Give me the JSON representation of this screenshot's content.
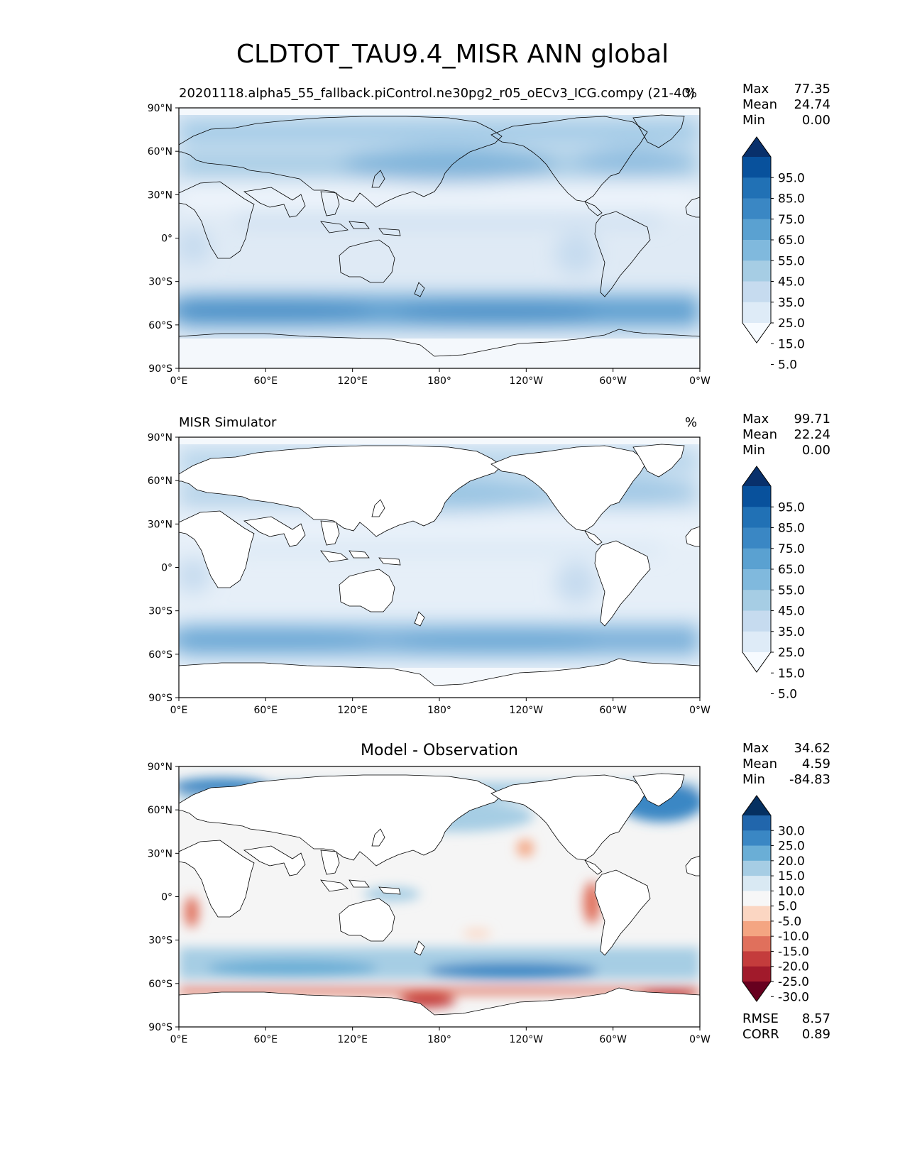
{
  "figure_title": "CLDTOT_TAU9.4_MISR ANN global",
  "lat_ticks": [
    "90°N",
    "60°N",
    "30°N",
    "0°",
    "30°S",
    "60°S",
    "90°S"
  ],
  "lon_ticks": [
    "0°E",
    "60°E",
    "120°E",
    "180°",
    "120°W",
    "60°W",
    "0°W"
  ],
  "panels": [
    {
      "left_title": "20201118.alpha5_55_fallback.piControl.ne30pg2_r05_oECv3_ICG.compy (21-40)",
      "center_title": "",
      "units": "%",
      "stats": [
        {
          "label": "Max",
          "value": "77.35"
        },
        {
          "label": "Mean",
          "value": "24.74"
        },
        {
          "label": "Min",
          "value": "0.00"
        }
      ],
      "colorbar_labels": [
        "95.0",
        "85.0",
        "75.0",
        "65.0",
        "55.0",
        "45.0",
        "35.0",
        "25.0",
        "15.0",
        "5.0"
      ],
      "colorbar_colors": [
        "#08306b",
        "#08519c",
        "#2171b5",
        "#3a87c4",
        "#5aa1d1",
        "#80b9dd",
        "#a6cde4",
        "#c6dbef",
        "#deebf7",
        "#f7fbff"
      ]
    },
    {
      "left_title": "MISR Simulator",
      "center_title": "",
      "units": "%",
      "stats": [
        {
          "label": "Max",
          "value": "99.71"
        },
        {
          "label": "Mean",
          "value": "22.24"
        },
        {
          "label": "Min",
          "value": "0.00"
        }
      ],
      "colorbar_labels": [
        "95.0",
        "85.0",
        "75.0",
        "65.0",
        "55.0",
        "45.0",
        "35.0",
        "25.0",
        "15.0",
        "5.0"
      ],
      "colorbar_colors": [
        "#08306b",
        "#08519c",
        "#2171b5",
        "#3a87c4",
        "#5aa1d1",
        "#80b9dd",
        "#a6cde4",
        "#c6dbef",
        "#deebf7",
        "#f7fbff"
      ]
    },
    {
      "left_title": "",
      "center_title": "Model - Observation",
      "units": "",
      "stats": [
        {
          "label": "Max",
          "value": "34.62"
        },
        {
          "label": "Mean",
          "value": "4.59"
        },
        {
          "label": "Min",
          "value": "-84.83"
        }
      ],
      "colorbar_labels": [
        "30.0",
        "25.0",
        "20.0",
        "15.0",
        "10.0",
        "5.0",
        "-5.0",
        "-10.0",
        "-15.0",
        "-20.0",
        "-25.0",
        "-30.0"
      ],
      "colorbar_colors": [
        "#053061",
        "#2166ac",
        "#3a87c4",
        "#6aaed6",
        "#a6cde4",
        "#d9e9f3",
        "#f7f7f7",
        "#fbd6c2",
        "#f4a582",
        "#e0705c",
        "#c43c3c",
        "#a11a2b",
        "#67001f"
      ],
      "metrics": [
        {
          "label": "RMSE",
          "value": "8.57"
        },
        {
          "label": "CORR",
          "value": "0.89"
        }
      ]
    }
  ]
}
